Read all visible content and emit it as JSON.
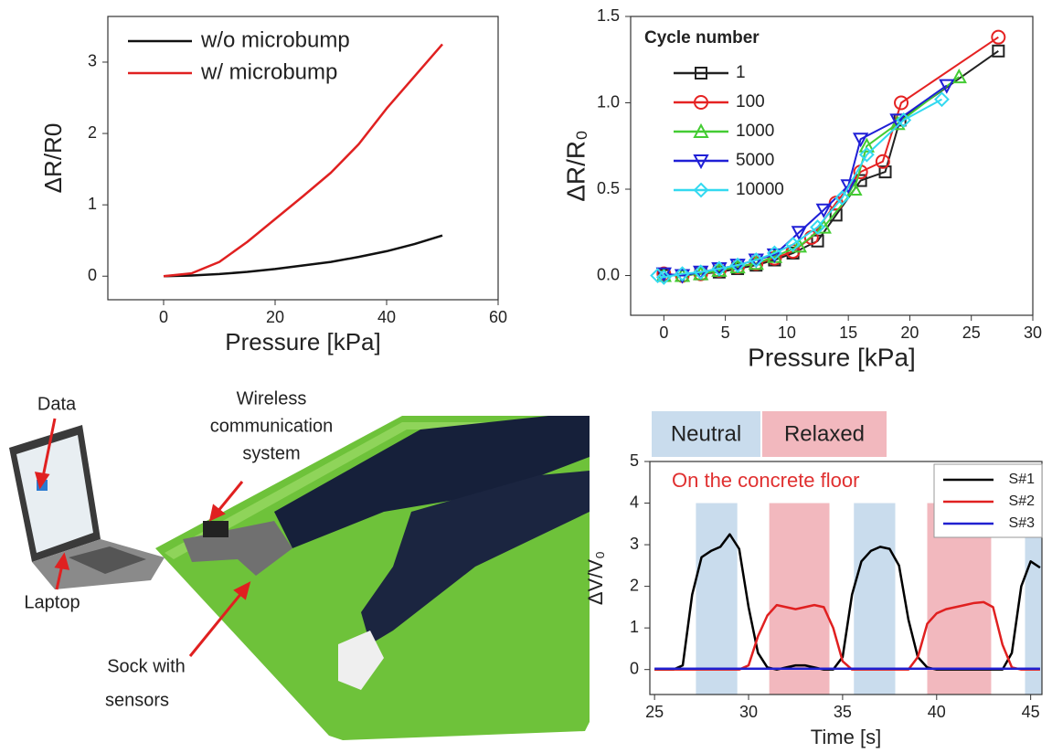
{
  "chart_data": [
    {
      "type": "line",
      "xlabel": "Pressure [kPa]",
      "ylabel": "ΔR/R0",
      "x": [
        0,
        5,
        10,
        15,
        20,
        25,
        30,
        35,
        40,
        45,
        50
      ],
      "series": [
        {
          "name": "w/o microbump",
          "color": "#111111",
          "values": [
            0,
            0.01,
            0.03,
            0.06,
            0.1,
            0.15,
            0.2,
            0.27,
            0.35,
            0.45,
            0.57
          ]
        },
        {
          "name": "w/ microbump",
          "color": "#e02020",
          "values": [
            0,
            0.04,
            0.2,
            0.48,
            0.8,
            1.12,
            1.45,
            1.85,
            2.35,
            2.8,
            3.25
          ]
        }
      ],
      "xlim": [
        -10,
        60
      ],
      "xticks": [
        0,
        20,
        40,
        60
      ],
      "ylim": [
        -0.33,
        3.64
      ],
      "yticks": [
        0,
        1,
        2,
        3
      ],
      "legend": "upper left"
    },
    {
      "type": "line",
      "xlabel": "Pressure [kPa]",
      "ylabel": "ΔR/R₀",
      "legend_title": "Cycle number",
      "series": [
        {
          "name": "1",
          "color": "#222222",
          "marker": "square",
          "x": [
            0,
            1.5,
            3,
            4.5,
            6,
            7.5,
            9,
            10.5,
            12.5,
            14,
            16,
            18,
            19.2,
            27.2
          ],
          "values": [
            0,
            0,
            0.01,
            0.02,
            0.04,
            0.06,
            0.09,
            0.13,
            0.2,
            0.35,
            0.55,
            0.6,
            0.9,
            1.3
          ]
        },
        {
          "name": "100",
          "color": "#e52222",
          "marker": "circle",
          "x": [
            0,
            1.5,
            3,
            4.5,
            6,
            7.5,
            9,
            10.5,
            12,
            14,
            16,
            17.8,
            19.3,
            27.2
          ],
          "values": [
            0.01,
            0,
            0.01,
            0.03,
            0.05,
            0.07,
            0.1,
            0.14,
            0.22,
            0.42,
            0.6,
            0.66,
            1.0,
            1.38
          ]
        },
        {
          "name": "1000",
          "color": "#44cc33",
          "marker": "triangle-up",
          "x": [
            0,
            1.5,
            3,
            4.5,
            6,
            7.5,
            9,
            11,
            13,
            15.5,
            16.5,
            19,
            24
          ],
          "values": [
            0,
            0,
            0.01,
            0.03,
            0.05,
            0.07,
            0.11,
            0.17,
            0.28,
            0.5,
            0.75,
            0.88,
            1.15
          ]
        },
        {
          "name": "5000",
          "color": "#1f1fd6",
          "marker": "triangle-down",
          "x": [
            0,
            1.5,
            3,
            4.5,
            6,
            7.5,
            9,
            11,
            13,
            15,
            16,
            19,
            23
          ],
          "values": [
            0.01,
            0,
            0.02,
            0.04,
            0.06,
            0.09,
            0.12,
            0.25,
            0.38,
            0.52,
            0.79,
            0.9,
            1.1
          ]
        },
        {
          "name": "10000",
          "color": "#33d9f0",
          "marker": "diamond",
          "x": [
            -0.5,
            0,
            1.5,
            3,
            4.5,
            6,
            7.5,
            9,
            10.5,
            12.5,
            14.5,
            16.5,
            19.5,
            22.6
          ],
          "values": [
            0,
            -0.01,
            0.01,
            0.02,
            0.04,
            0.06,
            0.09,
            0.13,
            0.18,
            0.28,
            0.45,
            0.7,
            0.9,
            1.02
          ]
        }
      ],
      "xlim": [
        -2.7,
        30
      ],
      "xticks": [
        0,
        5,
        10,
        15,
        20,
        25,
        30
      ],
      "ylim": [
        -0.23,
        1.5
      ],
      "yticks": [
        {
          "value": 0,
          "label": "0.0"
        },
        {
          "value": 0.5,
          "label": "0.5"
        },
        {
          "value": 1,
          "label": "1.0"
        },
        {
          "value": 1.5,
          "label": "1.5"
        }
      ],
      "legend": "upper left"
    },
    {
      "type": "line",
      "xlabel": "Time [s]",
      "ylabel": "ΔV/V₀",
      "annotation": "On the concrete floor",
      "phases": [
        {
          "label": "Neutral",
          "color": "#c9dced"
        },
        {
          "label": "Relaxed",
          "color": "#f2b8be"
        }
      ],
      "bands": [
        {
          "start": 27.2,
          "end": 29.4,
          "top": 4,
          "color": "#c9dced"
        },
        {
          "start": 31.1,
          "end": 34.3,
          "top": 4,
          "color": "#f2b8be"
        },
        {
          "start": 35.6,
          "end": 37.8,
          "top": 4,
          "color": "#c9dced"
        },
        {
          "start": 39.5,
          "end": 42.9,
          "top": 4,
          "color": "#f2b8be"
        },
        {
          "start": 44.7,
          "end": 45.6,
          "top": 4,
          "color": "#c9dced"
        }
      ],
      "x": [
        25,
        25.5,
        26,
        26.5,
        27,
        27.5,
        28,
        28.5,
        29,
        29.5,
        30,
        30.5,
        31,
        31.5,
        32,
        32.5,
        33,
        33.5,
        34,
        34.5,
        35,
        35.5,
        36,
        36.5,
        37,
        37.5,
        38,
        38.5,
        39,
        39.5,
        40,
        40.5,
        41,
        41.5,
        42,
        42.5,
        43,
        43.5,
        44,
        44.5,
        45,
        45.5
      ],
      "series": [
        {
          "name": "S#1",
          "color": "#000000",
          "values": [
            0,
            0,
            0,
            0.1,
            1.8,
            2.7,
            2.85,
            2.95,
            3.25,
            2.9,
            1.5,
            0.4,
            0.05,
            0,
            0.05,
            0.1,
            0.1,
            0.05,
            0,
            0,
            0.3,
            1.8,
            2.6,
            2.85,
            2.95,
            2.9,
            2.5,
            1.2,
            0.3,
            0.05,
            0,
            0,
            0,
            0,
            0,
            0,
            0,
            0,
            0.4,
            2.0,
            2.6,
            2.45
          ]
        },
        {
          "name": "S#2",
          "color": "#e02020",
          "values": [
            0,
            0,
            0,
            0,
            0,
            0,
            0,
            0,
            0,
            0,
            0.1,
            0.8,
            1.3,
            1.55,
            1.5,
            1.45,
            1.5,
            1.55,
            1.5,
            1.0,
            0.2,
            0,
            0,
            0,
            0,
            0,
            0,
            0,
            0.3,
            1.1,
            1.35,
            1.45,
            1.5,
            1.55,
            1.6,
            1.62,
            1.5,
            0.6,
            0.05,
            0,
            0,
            0
          ]
        },
        {
          "name": "S#3",
          "color": "#2020d0",
          "values": [
            0.02,
            0.02,
            0.02,
            0.02,
            0.02,
            0.02,
            0.02,
            0.02,
            0.02,
            0.02,
            0.02,
            0.02,
            0.02,
            0.02,
            0.02,
            0.02,
            0.02,
            0.02,
            0.02,
            0.02,
            0.02,
            0.02,
            0.02,
            0.02,
            0.02,
            0.02,
            0.02,
            0.02,
            0.02,
            0.02,
            0.02,
            0.02,
            0.02,
            0.02,
            0.02,
            0.02,
            0.02,
            0.02,
            0.02,
            0.02,
            0.02,
            0.02
          ]
        }
      ],
      "xlim": [
        24.75,
        45.6
      ],
      "xticks": [
        25,
        30,
        35,
        40,
        45
      ],
      "ylim": [
        -0.6,
        5
      ],
      "yticks": [
        0,
        1,
        2,
        3,
        4,
        5
      ],
      "legend": "upper right"
    }
  ],
  "photo": {
    "labels": {
      "data": "Data",
      "laptop": "Laptop",
      "wireless": [
        "Wireless",
        "communication",
        "system"
      ],
      "sock": [
        "Sock with",
        "sensors"
      ]
    }
  }
}
